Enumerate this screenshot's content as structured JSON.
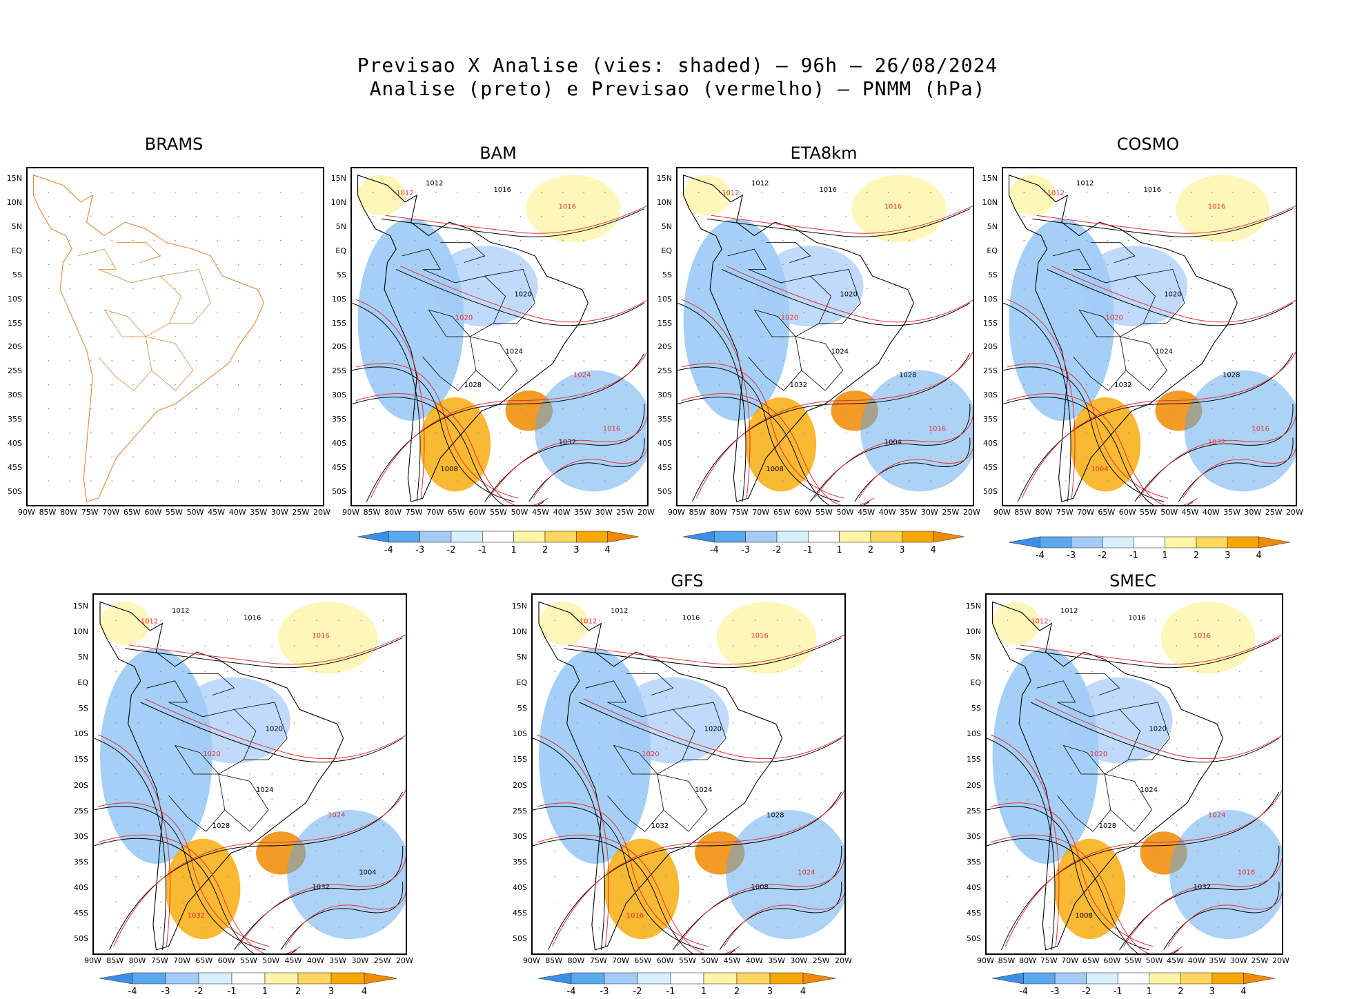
{
  "title": {
    "line1": "Previsao X Analise (vies: shaded) – 96h – 26/08/2024",
    "line2": "Analise (preto) e Previsao (vermelho) – PNMM (hPa)"
  },
  "lat_labels": [
    "15N",
    "10N",
    "5N",
    "EQ",
    "5S",
    "10S",
    "15S",
    "20S",
    "25S",
    "30S",
    "35S",
    "40S",
    "45S",
    "50S"
  ],
  "lon_labels": [
    "90W",
    "85W",
    "80W",
    "75W",
    "70W",
    "65W",
    "60W",
    "55W",
    "50W",
    "45W",
    "40W",
    "35W",
    "30W",
    "25W",
    "20W"
  ],
  "colorbar": {
    "labels": [
      "-4",
      "-3",
      "-2",
      "-1",
      "1",
      "2",
      "3",
      "4"
    ],
    "colors": [
      "#3d8ee8",
      "#5aa8f0",
      "#a4cbf8",
      "#d8f0fc",
      "#ffffff",
      "#fff4a8",
      "#ffd75c",
      "#f7a800",
      "#f08a00"
    ]
  },
  "colors": {
    "analysis": "#000000",
    "forecast": "#e53030",
    "coast": "#e0883a"
  },
  "panels": [
    {
      "name": "BRAMS",
      "has_colorbar": false
    },
    {
      "name": "BAM",
      "has_colorbar": true,
      "isobars": [
        {
          "v": "1012",
          "c": "a"
        },
        {
          "v": "1012",
          "c": "f"
        },
        {
          "v": "1016",
          "c": "a"
        },
        {
          "v": "1016",
          "c": "f"
        },
        {
          "v": "1020",
          "c": "a"
        },
        {
          "v": "1020",
          "c": "f"
        },
        {
          "v": "1024",
          "c": "a"
        },
        {
          "v": "1024",
          "c": "f"
        },
        {
          "v": "1028",
          "c": "a"
        },
        {
          "v": "1032",
          "c": "a"
        },
        {
          "v": "1008",
          "c": "a"
        },
        {
          "v": "1016",
          "c": "f"
        }
      ]
    },
    {
      "name": "ETA8km",
      "has_colorbar": true,
      "isobars": [
        {
          "v": "1012",
          "c": "a"
        },
        {
          "v": "1012",
          "c": "f"
        },
        {
          "v": "1016",
          "c": "a"
        },
        {
          "v": "1016",
          "c": "f"
        },
        {
          "v": "1020",
          "c": "a"
        },
        {
          "v": "1020",
          "c": "f"
        },
        {
          "v": "1024",
          "c": "a"
        },
        {
          "v": "1028",
          "c": "a"
        },
        {
          "v": "1032",
          "c": "a"
        },
        {
          "v": "1004",
          "c": "a"
        },
        {
          "v": "1008",
          "c": "a"
        },
        {
          "v": "1016",
          "c": "f"
        }
      ]
    },
    {
      "name": "COSMO",
      "has_colorbar": true,
      "isobars": [
        {
          "v": "1012",
          "c": "a"
        },
        {
          "v": "1012",
          "c": "f"
        },
        {
          "v": "1016",
          "c": "a"
        },
        {
          "v": "1016",
          "c": "f"
        },
        {
          "v": "1020",
          "c": "a"
        },
        {
          "v": "1020",
          "c": "f"
        },
        {
          "v": "1024",
          "c": "a"
        },
        {
          "v": "1028",
          "c": "a"
        },
        {
          "v": "1032",
          "c": "a"
        },
        {
          "v": "1032",
          "c": "f"
        },
        {
          "v": "1004",
          "c": "f"
        },
        {
          "v": "1016",
          "c": "f"
        }
      ]
    },
    {
      "name": "",
      "has_colorbar": true,
      "isobars": [
        {
          "v": "1012",
          "c": "a"
        },
        {
          "v": "1012",
          "c": "f"
        },
        {
          "v": "1016",
          "c": "a"
        },
        {
          "v": "1016",
          "c": "f"
        },
        {
          "v": "1020",
          "c": "a"
        },
        {
          "v": "1020",
          "c": "f"
        },
        {
          "v": "1024",
          "c": "a"
        },
        {
          "v": "1024",
          "c": "f"
        },
        {
          "v": "1028",
          "c": "a"
        },
        {
          "v": "1032",
          "c": "a"
        },
        {
          "v": "1032",
          "c": "f"
        },
        {
          "v": "1004",
          "c": "a"
        }
      ]
    },
    {
      "name": "GFS",
      "has_colorbar": true,
      "isobars": [
        {
          "v": "1012",
          "c": "a"
        },
        {
          "v": "1012",
          "c": "f"
        },
        {
          "v": "1016",
          "c": "a"
        },
        {
          "v": "1016",
          "c": "f"
        },
        {
          "v": "1020",
          "c": "a"
        },
        {
          "v": "1020",
          "c": "f"
        },
        {
          "v": "1024",
          "c": "a"
        },
        {
          "v": "1028",
          "c": "a"
        },
        {
          "v": "1032",
          "c": "a"
        },
        {
          "v": "1008",
          "c": "a"
        },
        {
          "v": "1016",
          "c": "f"
        },
        {
          "v": "1024",
          "c": "f"
        }
      ]
    },
    {
      "name": "SMEC",
      "has_colorbar": true,
      "isobars": [
        {
          "v": "1012",
          "c": "a"
        },
        {
          "v": "1012",
          "c": "f"
        },
        {
          "v": "1016",
          "c": "a"
        },
        {
          "v": "1016",
          "c": "f"
        },
        {
          "v": "1020",
          "c": "a"
        },
        {
          "v": "1020",
          "c": "f"
        },
        {
          "v": "1024",
          "c": "a"
        },
        {
          "v": "1024",
          "c": "f"
        },
        {
          "v": "1028",
          "c": "a"
        },
        {
          "v": "1032",
          "c": "a"
        },
        {
          "v": "1008",
          "c": "a"
        },
        {
          "v": "1016",
          "c": "f"
        }
      ]
    }
  ]
}
